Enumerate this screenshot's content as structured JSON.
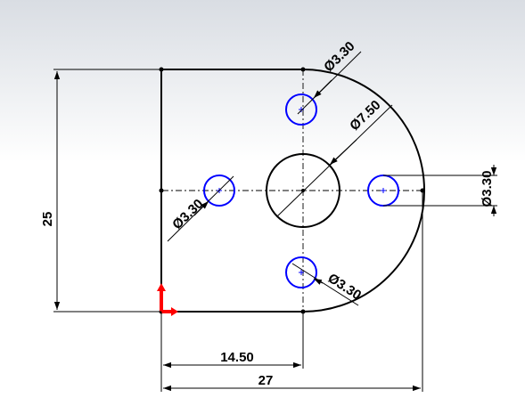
{
  "drawing": {
    "colors": {
      "profile": "#000000",
      "hole": "#0000ff",
      "dimension": "#000000",
      "origin_x": "#ff0000",
      "origin_y": "#ff0000"
    },
    "dimensions": {
      "height": "25",
      "width_total": "27",
      "width_partial": "14.50",
      "hole_top_dia": "Ø3.30",
      "center_hole_dia": "Ø7.50",
      "hole_right_dia": "Ø3.30",
      "hole_left_dia": "Ø3.30",
      "hole_bottom_dia": "Ø3.30"
    }
  }
}
